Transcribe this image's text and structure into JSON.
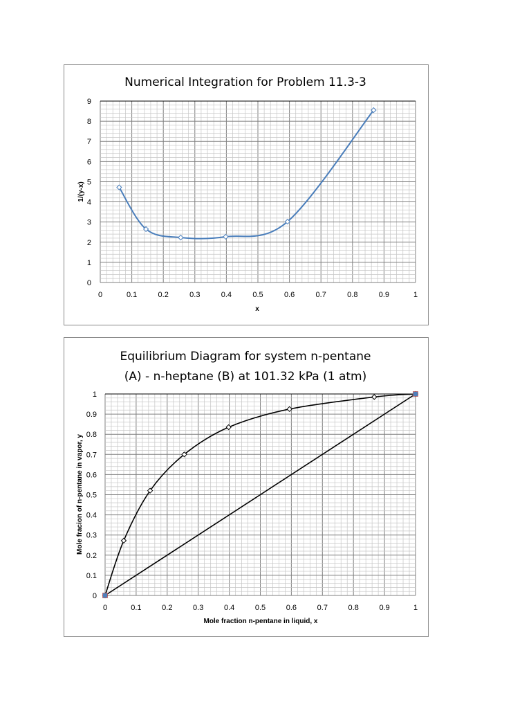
{
  "chart_data": [
    {
      "type": "line",
      "title": "Numerical Integration for Problem 11.3-3",
      "xlabel": "x",
      "ylabel": "1/(y-x)",
      "xlim": [
        0,
        1
      ],
      "ylim": [
        0,
        9
      ],
      "x_ticks": [
        "0",
        "0.1",
        "0.2",
        "0.3",
        "0.4",
        "0.5",
        "0.6",
        "0.7",
        "0.8",
        "0.9",
        "1"
      ],
      "y_ticks": [
        "0",
        "1",
        "2",
        "3",
        "4",
        "5",
        "6",
        "7",
        "8",
        "9"
      ],
      "grid": true,
      "smooth": true,
      "series": [
        {
          "name": "1/(y-x)",
          "color": "#4a7ebb",
          "marker": "diamond",
          "x": [
            0.06,
            0.145,
            0.255,
            0.398,
            0.594,
            0.867
          ],
          "y": [
            4.72,
            2.65,
            2.23,
            2.27,
            3.02,
            8.55
          ]
        }
      ]
    },
    {
      "type": "line",
      "title": [
        "Equilibrium Diagram for system n-pentane",
        "(A) - n-heptane (B) at 101.32 kPa (1 atm)"
      ],
      "xlabel": "Mole fraction n-pentane in liquid, x",
      "ylabel": "Mole fracion of n-pentane in vapor, y",
      "xlim": [
        0,
        1
      ],
      "ylim": [
        0,
        1
      ],
      "x_ticks": [
        "0",
        "0.1",
        "0.2",
        "0.3",
        "0.4",
        "0.5",
        "0.6",
        "0.7",
        "0.8",
        "0.9",
        "1"
      ],
      "y_ticks": [
        "0",
        "0.1",
        "0.2",
        "0.3",
        "0.4",
        "0.5",
        "0.6",
        "0.7",
        "0.8",
        "0.9",
        "1"
      ],
      "grid": true,
      "series": [
        {
          "name": "equilibrium curve",
          "color": "#000000",
          "marker": "diamond",
          "smooth": true,
          "x": [
            0,
            0.06,
            0.145,
            0.255,
            0.398,
            0.594,
            0.867,
            1
          ],
          "y": [
            0,
            0.272,
            0.52,
            0.7,
            0.835,
            0.925,
            0.985,
            1
          ]
        },
        {
          "name": "y = x",
          "color": "#000000",
          "marker": "square",
          "marker_color": "#4f81bd",
          "smooth": false,
          "x": [
            0,
            1
          ],
          "y": [
            0,
            1
          ]
        }
      ]
    }
  ]
}
